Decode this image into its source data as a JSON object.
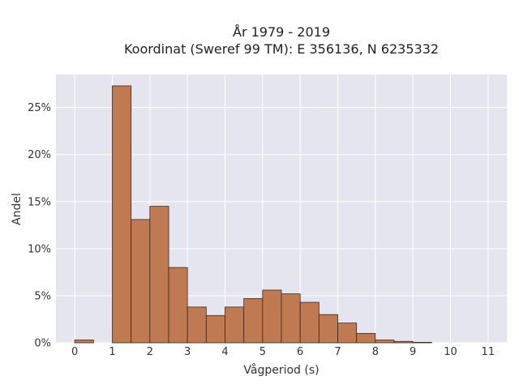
{
  "chart_data": {
    "type": "bar",
    "title_line1": "År 1979 - 2019",
    "title_line2": "Koordinat (Sweref 99 TM): E 356136, N 6235332",
    "xlabel": "Vågperiod (s)",
    "ylabel": "Andel",
    "xlim": [
      -0.5,
      11.5
    ],
    "ylim": [
      0,
      28.5
    ],
    "x_ticks": [
      0,
      1,
      2,
      3,
      4,
      5,
      6,
      7,
      8,
      9,
      10,
      11
    ],
    "y_ticks": [
      {
        "value": 0,
        "label": "0%"
      },
      {
        "value": 5,
        "label": "5%"
      },
      {
        "value": 10,
        "label": "10%"
      },
      {
        "value": 15,
        "label": "15%"
      },
      {
        "value": 20,
        "label": "20%"
      },
      {
        "value": 25,
        "label": "25%"
      }
    ],
    "bin_width": 0.5,
    "bins": [
      {
        "x0": 0.0,
        "value": 0.3
      },
      {
        "x0": 0.5,
        "value": 0
      },
      {
        "x0": 1.0,
        "value": 27.3
      },
      {
        "x0": 1.5,
        "value": 13.1
      },
      {
        "x0": 2.0,
        "value": 14.5
      },
      {
        "x0": 2.5,
        "value": 8.0
      },
      {
        "x0": 3.0,
        "value": 3.8
      },
      {
        "x0": 3.5,
        "value": 2.9
      },
      {
        "x0": 4.0,
        "value": 3.8
      },
      {
        "x0": 4.5,
        "value": 4.7
      },
      {
        "x0": 5.0,
        "value": 5.6
      },
      {
        "x0": 5.5,
        "value": 5.2
      },
      {
        "x0": 6.0,
        "value": 4.3
      },
      {
        "x0": 6.5,
        "value": 3.0
      },
      {
        "x0": 7.0,
        "value": 2.1
      },
      {
        "x0": 7.5,
        "value": 1.0
      },
      {
        "x0": 8.0,
        "value": 0.3
      },
      {
        "x0": 8.5,
        "value": 0.15
      },
      {
        "x0": 9.0,
        "value": 0.05
      }
    ],
    "grid": true,
    "colors": {
      "bar_fill": "#c07a52",
      "bar_stroke": "#3a2a20",
      "plot_bg": "#e5e5ef",
      "grid": "#ffffff"
    }
  }
}
